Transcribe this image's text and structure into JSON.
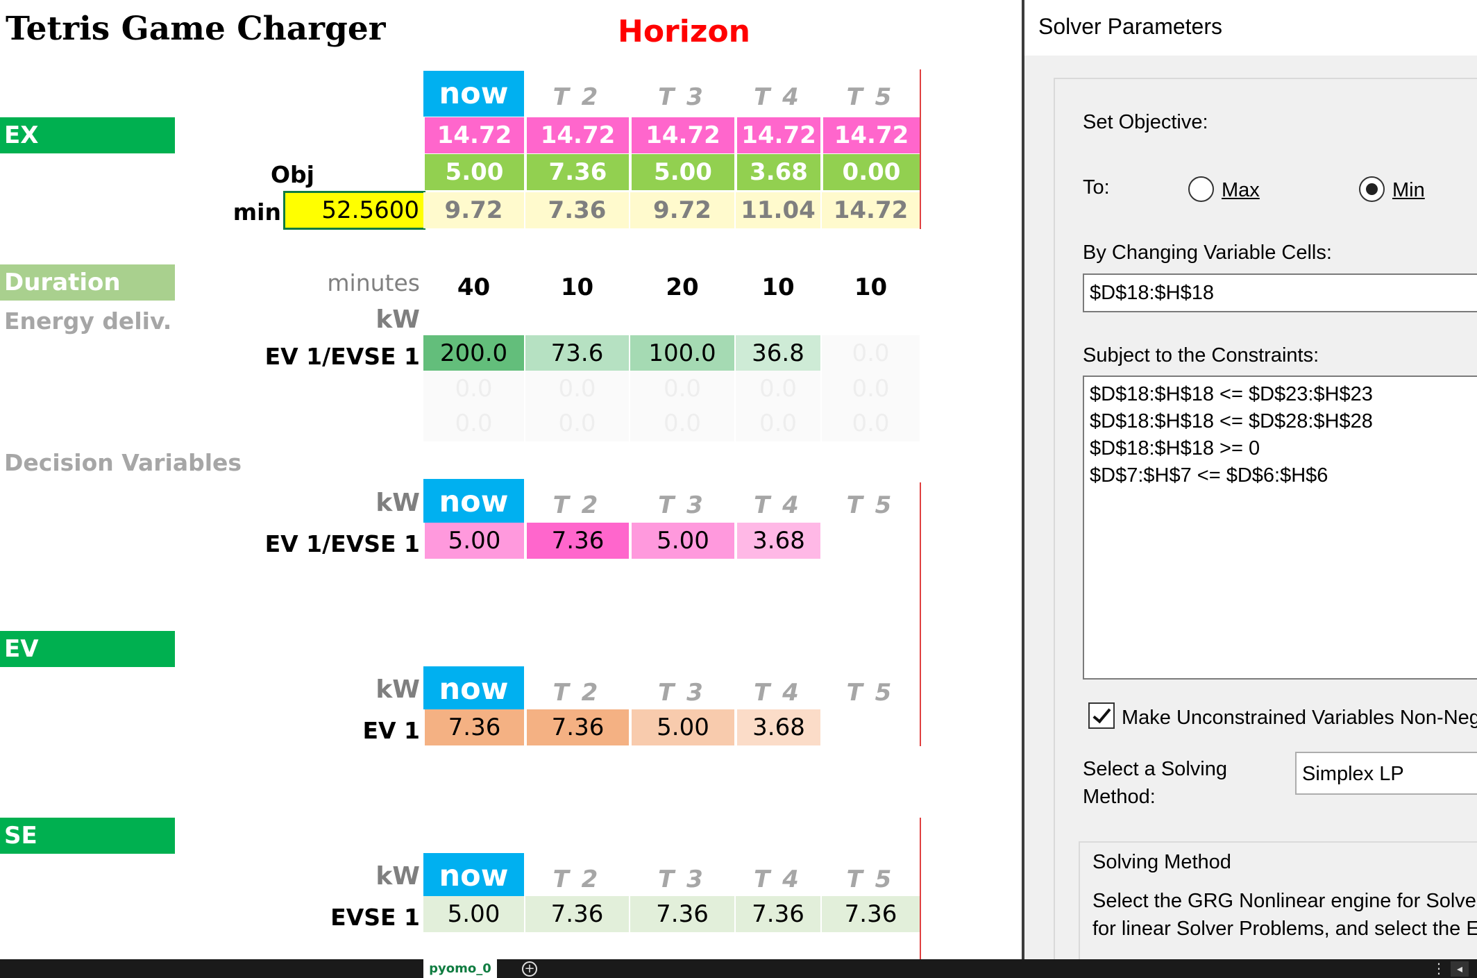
{
  "sheet": {
    "title": "Tetris Game Charger",
    "horizon": "Horizon",
    "ex_band": "EX",
    "obj_label": "Obj",
    "min_label": "min",
    "objective_value": "52.5600",
    "duration_band": "Duration",
    "minutes_label": "minutes",
    "energy_label": "Energy deliv.",
    "kw": "kW",
    "decision_label": "Decision Variables",
    "ev_band": "EV",
    "se_band": "SE",
    "header_now": "now",
    "time_headers": [
      "T 2",
      "T 3",
      "T 4",
      "T 5"
    ],
    "ex_row1": [
      "14.72",
      "14.72",
      "14.72",
      "14.72",
      "14.72"
    ],
    "ex_row2": [
      "5.00",
      "7.36",
      "5.00",
      "3.68",
      "0.00"
    ],
    "ex_row3": [
      "9.72",
      "7.36",
      "9.72",
      "11.04",
      "14.72"
    ],
    "durations": [
      "40",
      "10",
      "20",
      "10",
      "10"
    ],
    "energy_row_label": "EV 1/EVSE 1",
    "energy_row": [
      "200.0",
      "73.6",
      "100.0",
      "36.8",
      "0.0"
    ],
    "energy_zero_rows": [
      [
        "0.0",
        "0.0",
        "0.0",
        "0.0",
        "0.0"
      ],
      [
        "0.0",
        "0.0",
        "0.0",
        "0.0",
        "0.0"
      ]
    ],
    "decision_row_label": "EV 1/EVSE 1",
    "decision_row": [
      "5.00",
      "7.36",
      "5.00",
      "3.68"
    ],
    "ev_row_label": "EV 1",
    "ev_row": [
      "7.36",
      "7.36",
      "5.00",
      "3.68"
    ],
    "se_row_label": "EVSE 1",
    "se_row": [
      "5.00",
      "7.36",
      "7.36",
      "7.36",
      "7.36"
    ],
    "sheet_tab": "pyomo_0",
    "colors": {
      "band_green": "#00b050",
      "band_light_green": "#a9d08e",
      "now_blue": "#00b0f0",
      "ex_magenta": "#ff66cc",
      "ex_green": "#92d050",
      "ex_yellow_light": "#fffacd",
      "objective_yellow": "#ffff00"
    }
  },
  "dialog": {
    "title": "Solver Parameters",
    "set_objective": "Set Objective:",
    "to": "To:",
    "max": "Max",
    "min": "Min",
    "selected": "Min",
    "changing_label": "By Changing Variable Cells:",
    "changing_value": "$D$18:$H$18",
    "constraints_label": "Subject to the Constraints:",
    "constraints": [
      "$D$18:$H$18 <= $D$23:$H$23",
      "$D$18:$H$18 <= $D$28:$H$28",
      "$D$18:$H$18 >= 0",
      "$D$7:$H$7 <= $D$6:$H$6"
    ],
    "nonneg_label": "Make Unconstrained Variables Non-Neg",
    "nonneg_checked": true,
    "solving_label_1": "Select a Solving",
    "solving_label_2": "Method:",
    "solving_method": "Simplex LP",
    "method_heading": "Solving Method",
    "method_text_1": "Select the GRG Nonlinear engine for Solve",
    "method_text_2": "for linear Solver Problems, and select the E"
  }
}
